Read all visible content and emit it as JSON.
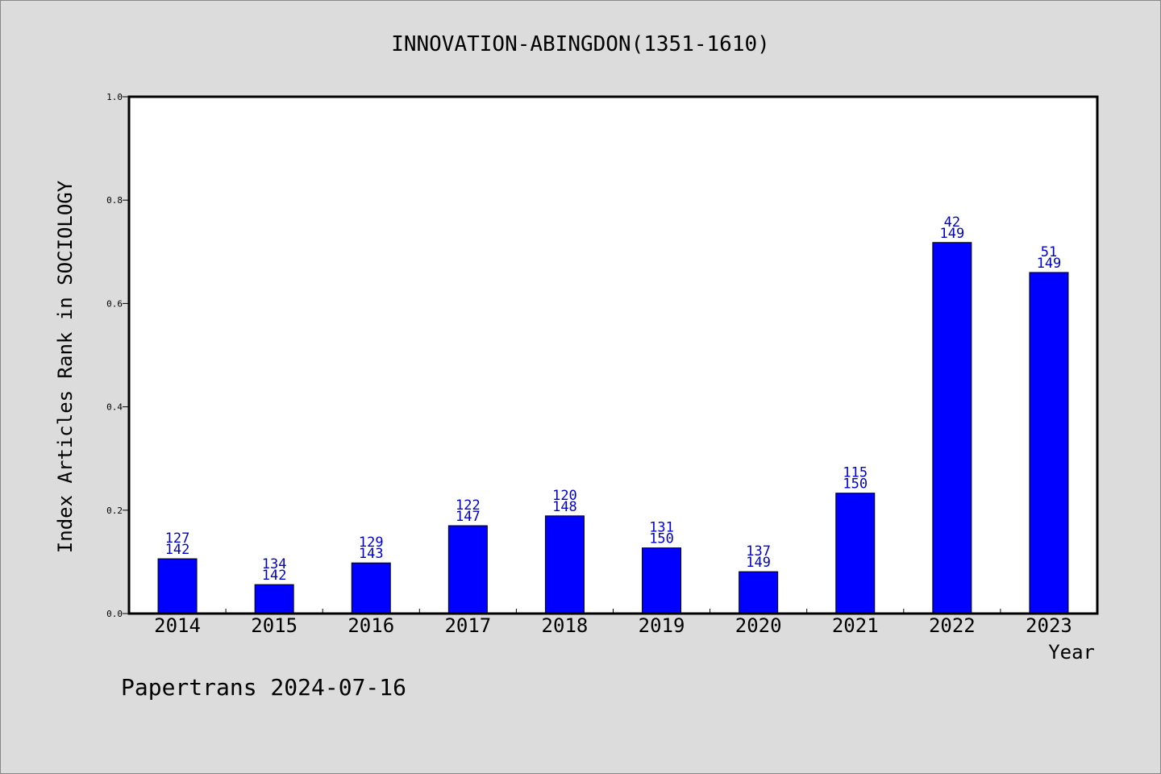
{
  "chart_data": {
    "type": "bar",
    "title": "INNOVATION-ABINGDON(1351-1610)",
    "xlabel": "Year",
    "ylabel": "Index Articles Rank in SOCIOLOGY",
    "ylim": [
      0,
      1.0
    ],
    "yticks": [
      "0.0",
      "0.2",
      "0.4",
      "0.6",
      "0.8",
      "1.0"
    ],
    "categories": [
      "2014",
      "2015",
      "2016",
      "2017",
      "2018",
      "2019",
      "2020",
      "2021",
      "2022",
      "2023"
    ],
    "values": [
      0.106,
      0.056,
      0.098,
      0.17,
      0.189,
      0.127,
      0.081,
      0.233,
      0.718,
      0.66
    ],
    "labels": [
      [
        "127",
        "142"
      ],
      [
        "134",
        "142"
      ],
      [
        "129",
        "143"
      ],
      [
        "122",
        "147"
      ],
      [
        "120",
        "148"
      ],
      [
        "131",
        "150"
      ],
      [
        "137",
        "149"
      ],
      [
        "115",
        "150"
      ],
      [
        "42",
        "149"
      ],
      [
        "51",
        "149"
      ]
    ],
    "bar_color": "#0000ff",
    "label_color": "#0000cc",
    "grid": false
  },
  "footer": "Papertrans 2024-07-16"
}
